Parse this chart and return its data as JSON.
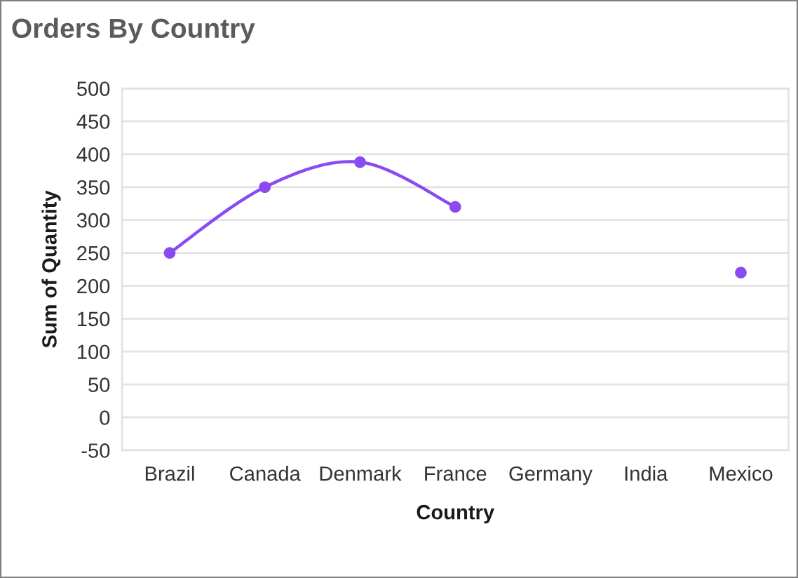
{
  "chart_data": {
    "type": "line",
    "title": "Orders By Country",
    "xlabel": "Country",
    "ylabel": "Sum of Quantity",
    "categories": [
      "Brazil",
      "Canada",
      "Denmark",
      "France",
      "Germany",
      "India",
      "Mexico"
    ],
    "series": [
      {
        "color": "#8a4af3",
        "values": [
          250,
          350,
          388,
          320,
          null,
          null,
          220
        ]
      }
    ],
    "ylim": [
      -50,
      500
    ],
    "yticks": [
      -50,
      0,
      50,
      100,
      150,
      200,
      250,
      300,
      350,
      400,
      450,
      500
    ],
    "grid": "y",
    "marker": "circle",
    "line_style": "solid"
  }
}
